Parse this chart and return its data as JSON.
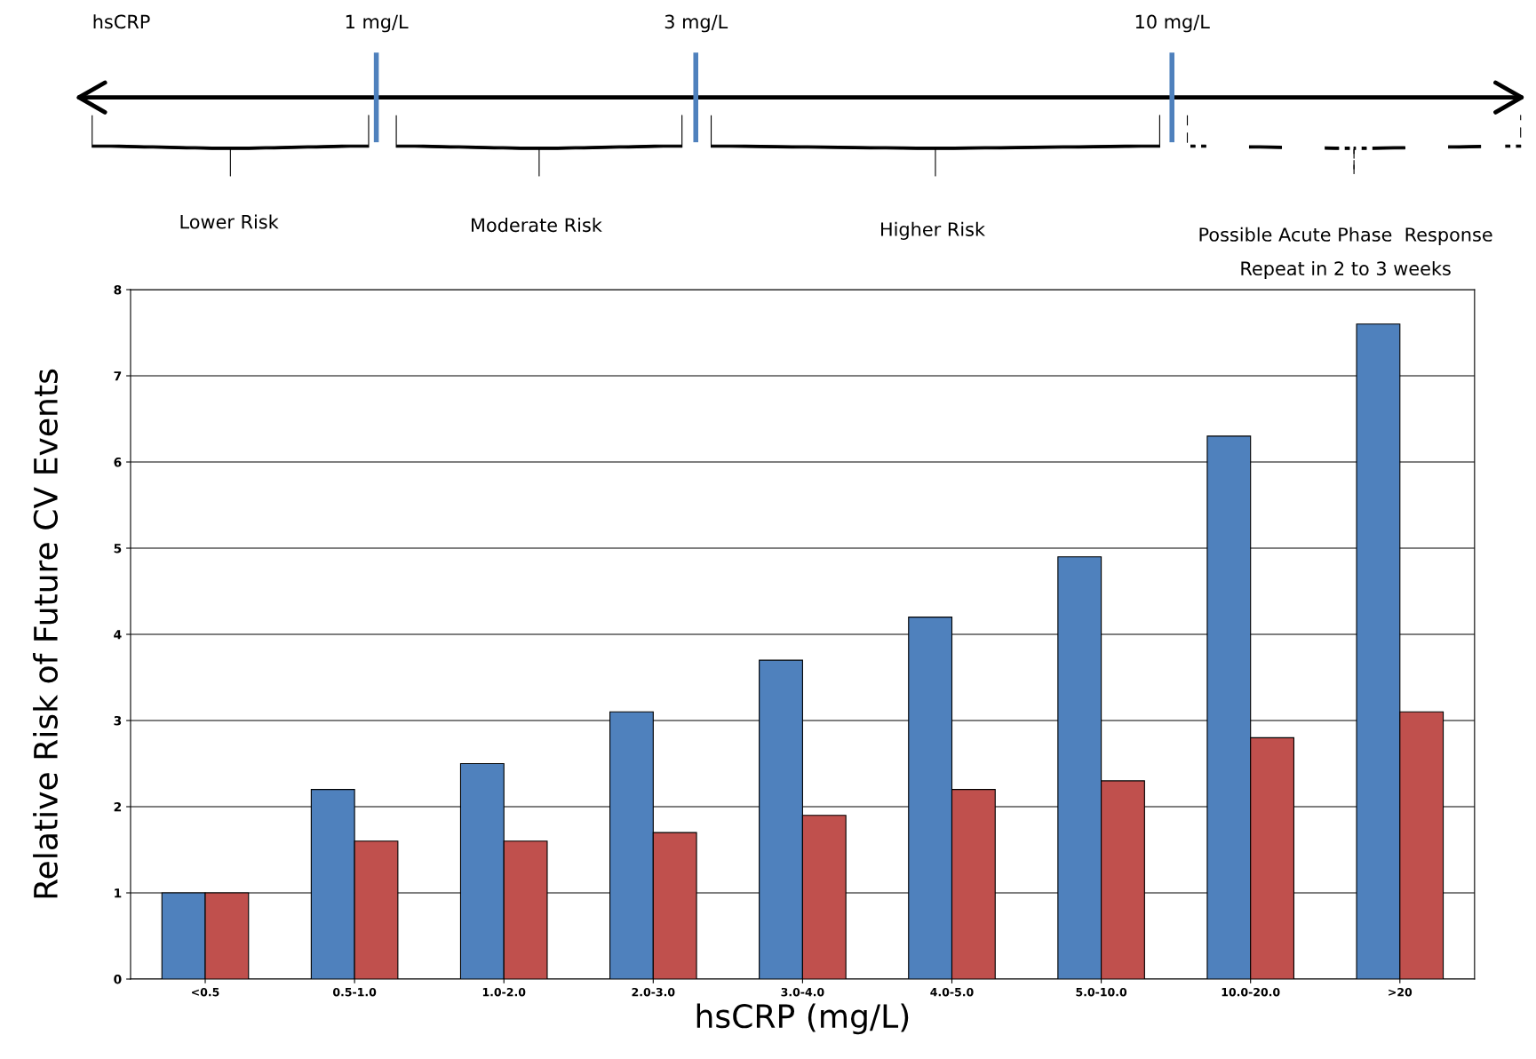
{
  "chart_data": {
    "type": "bar",
    "xlabel": "hsCRP (mg/L)",
    "ylabel": "Relative Risk of Future CV Events",
    "categories": [
      "<0.5",
      "0.5-1.0",
      "1.0-2.0",
      "2.0-3.0",
      "3.0-4.0",
      "4.0-5.0",
      "5.0-10.0",
      "10.0-20.0",
      ">20"
    ],
    "series": [
      {
        "color": "#4f81bd",
        "values": [
          1,
          2.2,
          2.5,
          3.1,
          3.7,
          4.2,
          4.9,
          6.3,
          7.6
        ]
      },
      {
        "color": "#c0504d",
        "values": [
          1,
          1.6,
          1.6,
          1.7,
          1.9,
          2.2,
          2.3,
          2.8,
          3.1
        ]
      }
    ],
    "ylim": [
      0,
      8
    ],
    "yticks": [
      0,
      1,
      2,
      3,
      4,
      5,
      6,
      7,
      8
    ],
    "grid": "y",
    "annotations": [
      "hsCRP",
      "1 mg/L",
      "3 mg/L",
      "10 mg/L",
      "Lower Risk",
      "Moderate Risk",
      "Higher Risk",
      "Possible Acute Phase  Response",
      "Repeat in 2 to 3 weeks"
    ]
  }
}
